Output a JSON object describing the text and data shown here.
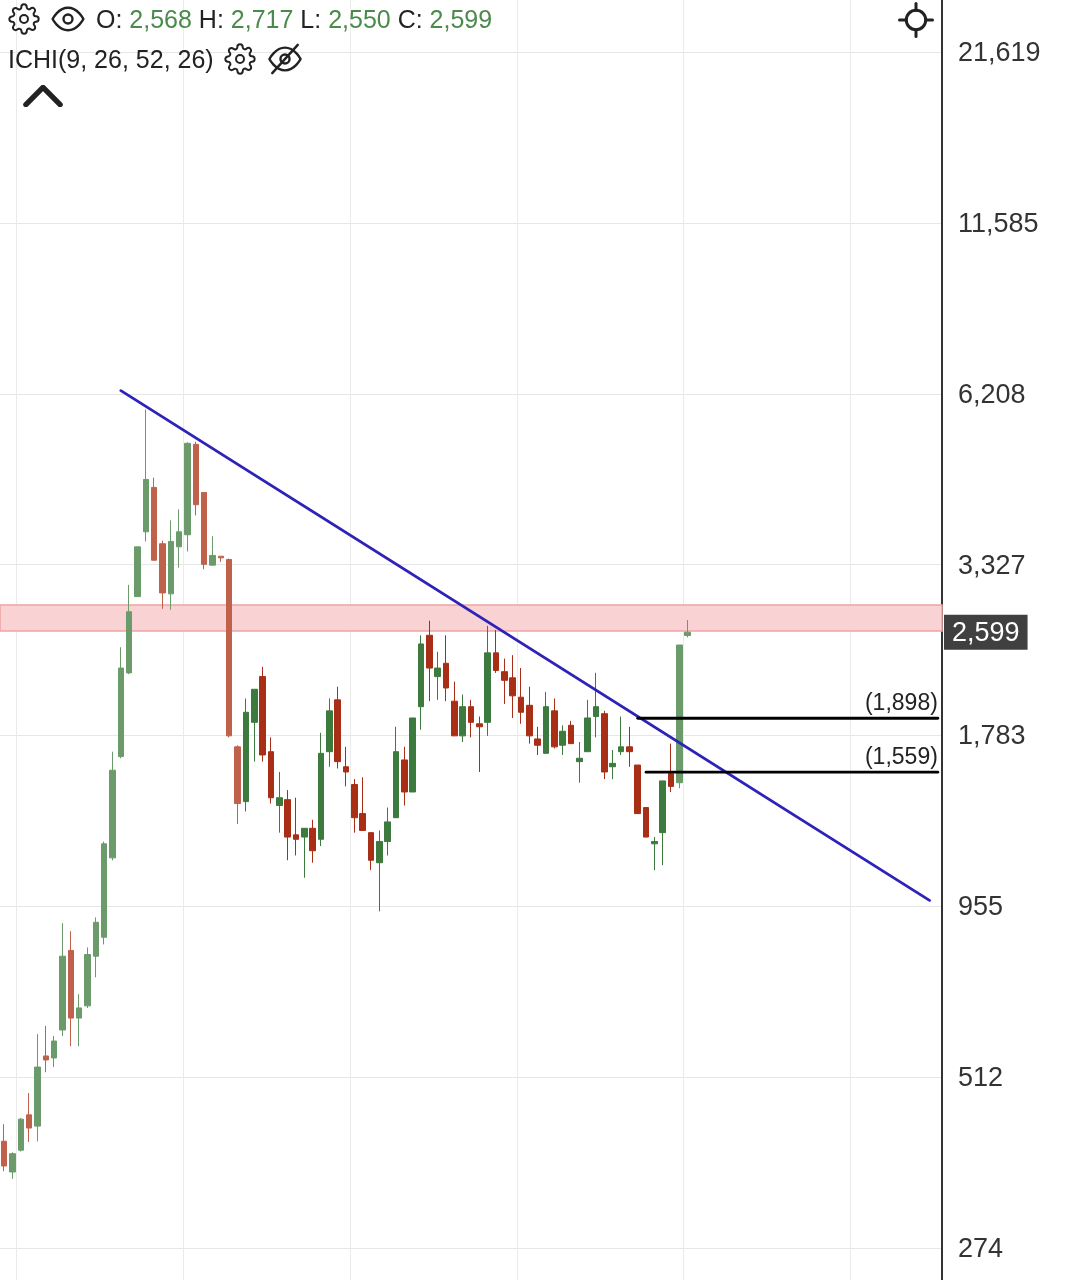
{
  "chart_data": {
    "type": "candlestick",
    "categories": [
      null,
      null,
      null,
      null,
      null,
      null,
      null,
      null,
      null,
      null,
      null,
      null,
      null,
      null,
      null,
      null,
      null,
      null,
      null,
      null,
      null,
      null,
      null,
      null,
      null,
      null,
      null,
      null,
      null,
      null,
      null,
      null,
      null,
      null,
      null,
      null,
      null,
      null,
      null,
      null,
      null,
      null,
      null,
      null,
      null,
      null,
      null,
      null,
      null,
      null,
      null,
      null,
      null,
      null,
      null,
      null,
      null,
      null,
      null,
      null,
      null,
      null,
      null,
      null,
      null,
      null,
      null,
      null,
      null,
      null,
      null,
      null,
      null,
      null,
      null,
      null,
      null,
      null,
      null,
      null,
      null,
      null,
      null,
      null,
      null,
      null,
      null,
      null,
      null,
      null,
      null,
      null,
      null,
      null,
      null,
      null,
      null,
      null,
      null,
      null,
      null,
      null,
      null,
      null,
      null,
      null,
      null,
      null,
      null,
      null,
      null,
      null,
      null
    ],
    "series": [
      {
        "ohlc": [
          [
            405,
            431,
            363,
            370
          ],
          [
            362,
            389,
            353,
            387
          ],
          [
            392,
            441,
            390,
            439
          ],
          [
            446,
            483,
            404,
            425
          ],
          [
            428,
            599,
            405,
            531
          ],
          [
            553,
            617,
            521,
            545
          ],
          [
            549,
            595,
            531,
            584
          ],
          [
            608,
            898,
            595,
            796
          ],
          [
            813,
            872,
            573,
            635
          ],
          [
            635,
            693,
            573,
            659
          ],
          [
            664,
            822,
            659,
            801
          ],
          [
            796,
            917,
            737,
            901
          ],
          [
            853,
            1210,
            831,
            1200
          ],
          [
            1140,
            1680,
            1130,
            1570
          ],
          [
            1650,
            2460,
            1640,
            2280
          ],
          [
            2240,
            3090,
            2230,
            2800
          ],
          [
            2960,
            3550,
            2960,
            3550
          ],
          [
            3750,
            5860,
            3620,
            4540
          ],
          [
            4410,
            4570,
            3380,
            3380
          ],
          [
            3590,
            3630,
            2830,
            3000
          ],
          [
            2990,
            3910,
            2820,
            3620
          ],
          [
            3550,
            4070,
            3290,
            3750
          ],
          [
            3710,
            5200,
            3490,
            5180
          ],
          [
            5160,
            5210,
            3980,
            4140
          ],
          [
            4330,
            4330,
            3270,
            3330
          ],
          [
            3320,
            3690,
            3320,
            3440
          ],
          [
            3430,
            3430,
            3360,
            3410
          ],
          [
            3390,
            3400,
            1770,
            1780
          ],
          [
            1710,
            1720,
            1290,
            1390
          ],
          [
            1400,
            2040,
            1350,
            1940
          ],
          [
            1870,
            2110,
            1620,
            2110
          ],
          [
            2210,
            2290,
            1620,
            1660
          ],
          [
            1680,
            1770,
            1390,
            1420
          ],
          [
            1380,
            1560,
            1250,
            1420
          ],
          [
            1410,
            1460,
            1130,
            1230
          ],
          [
            1240,
            1420,
            1150,
            1220
          ],
          [
            1230,
            1270,
            1060,
            1270
          ],
          [
            1270,
            1310,
            1120,
            1170
          ],
          [
            1220,
            1800,
            1190,
            1670
          ],
          [
            1680,
            2040,
            1590,
            1950
          ],
          [
            2030,
            2130,
            1580,
            1620
          ],
          [
            1590,
            1710,
            1480,
            1560
          ],
          [
            1490,
            1520,
            1250,
            1320
          ],
          [
            1340,
            1530,
            1260,
            1260
          ],
          [
            1250,
            1250,
            1090,
            1130
          ],
          [
            1120,
            1260,
            938,
            1210
          ],
          [
            1210,
            1370,
            1150,
            1300
          ],
          [
            1320,
            1840,
            1320,
            1680
          ],
          [
            1630,
            1710,
            1380,
            1450
          ],
          [
            1450,
            1900,
            1450,
            1900
          ],
          [
            1980,
            2570,
            1820,
            2490
          ],
          [
            2570,
            2710,
            2020,
            2280
          ],
          [
            2210,
            2420,
            2030,
            2280
          ],
          [
            2320,
            2570,
            2020,
            2120
          ],
          [
            2020,
            2170,
            1780,
            1780
          ],
          [
            1780,
            2070,
            1740,
            1980
          ],
          [
            1980,
            2030,
            1770,
            1870
          ],
          [
            1860,
            1910,
            1560,
            1840
          ],
          [
            1870,
            2660,
            1780,
            2410
          ],
          [
            2410,
            2620,
            2240,
            2260
          ],
          [
            2250,
            2360,
            2000,
            2180
          ],
          [
            2200,
            2390,
            1900,
            2060
          ],
          [
            2050,
            2280,
            1860,
            1940
          ],
          [
            1990,
            2130,
            1730,
            1780
          ],
          [
            1760,
            1840,
            1660,
            1720
          ],
          [
            1670,
            2090,
            1670,
            1980
          ],
          [
            1950,
            2040,
            1700,
            1710
          ],
          [
            1720,
            1850,
            1660,
            1810
          ],
          [
            1850,
            1880,
            1730,
            1730
          ],
          [
            1620,
            1740,
            1500,
            1640
          ],
          [
            1680,
            2030,
            1680,
            1900
          ],
          [
            1910,
            2240,
            1770,
            1980
          ],
          [
            1930,
            1950,
            1520,
            1560
          ],
          [
            1590,
            1690,
            1520,
            1610
          ],
          [
            1680,
            1910,
            1660,
            1710
          ],
          [
            1710,
            1840,
            1590,
            1680
          ],
          [
            1600,
            1600,
            1340,
            1340
          ],
          [
            1370,
            1370,
            1230,
            1230
          ],
          [
            1200,
            1230,
            1090,
            1210
          ],
          [
            1250,
            1510,
            1110,
            1510
          ],
          [
            1550,
            1730,
            1450,
            1480
          ],
          [
            1500,
            2480,
            1470,
            2480
          ],
          [
            2568,
            2717,
            2550,
            2599
          ],
          null,
          null,
          null,
          null,
          null,
          null,
          null,
          null,
          null,
          null,
          null,
          null,
          null,
          null,
          null,
          null,
          null,
          null,
          null,
          null,
          null,
          null,
          null,
          null,
          null,
          null,
          null,
          null,
          null,
          null
        ],
        "colors": [
          "#c0614b",
          "#6b9a6b",
          "#6b9a6b",
          "#c0614b",
          "#6b9a6b",
          "#c0614b",
          "#6b9a6b",
          "#6b9a6b",
          "#c0614b",
          "#6b9a6b",
          "#6b9a6b",
          "#6b9a6b",
          "#6b9a6b",
          "#6b9a6b",
          "#6b9a6b",
          "#6b9a6b",
          "#6b9a6b",
          "#6b9a6b",
          "#c0614b",
          "#c0614b",
          "#6b9a6b",
          "#6b9a6b",
          "#6b9a6b",
          "#c0614b",
          "#c0614b",
          "#6b9a6b",
          "#c0614b",
          "#c0614b",
          "#c0614b",
          "#3d7a3d",
          "#3d7a3d",
          "#a82e16",
          "#a82e16",
          "#3d7a3d",
          "#a82e16",
          "#a82e16",
          "#3d7a3d",
          "#a82e16",
          "#3d7a3d",
          "#3d7a3d",
          "#a82e16",
          "#a82e16",
          "#a82e16",
          "#a82e16",
          "#a82e16",
          "#3d7a3d",
          "#3d7a3d",
          "#3d7a3d",
          "#a82e16",
          "#3d7a3d",
          "#3d7a3d",
          "#a82e16",
          "#3d7a3d",
          "#a82e16",
          "#a82e16",
          "#3d7a3d",
          "#a82e16",
          "#a82e16",
          "#3d7a3d",
          "#a82e16",
          "#a82e16",
          "#a82e16",
          "#a82e16",
          "#a82e16",
          "#a82e16",
          "#3d7a3d",
          "#a82e16",
          "#3d7a3d",
          "#a82e16",
          "#3d7a3d",
          "#3d7a3d",
          "#3d7a3d",
          "#a82e16",
          "#3d7a3d",
          "#3d7a3d",
          "#a82e16",
          "#a82e16",
          "#a82e16",
          "#3d7a3d",
          "#3d7a3d",
          "#a82e16",
          "#6b9a6b",
          "#6b9a6b",
          null,
          null,
          null,
          null,
          null,
          null,
          null,
          null,
          null,
          null,
          null,
          null,
          null,
          null,
          null,
          null,
          null,
          null,
          null,
          null,
          null,
          null,
          null,
          null,
          null,
          null,
          null,
          null,
          null,
          null
        ]
      },
      {
        "type": "line",
        "color": "#2e22b8",
        "values": [
          null,
          null,
          null,
          null,
          null,
          null,
          null,
          null,
          null,
          null,
          null,
          null,
          null,
          null,
          6280,
          null,
          null,
          null,
          null,
          null,
          null,
          null,
          null,
          null,
          null,
          null,
          null,
          null,
          null,
          null,
          null,
          null,
          null,
          null,
          null,
          null,
          null,
          null,
          null,
          null,
          null,
          null,
          null,
          null,
          null,
          null,
          null,
          null,
          null,
          null,
          null,
          null,
          null,
          null,
          null,
          null,
          null,
          null,
          null,
          null,
          null,
          null,
          null,
          null,
          null,
          null,
          null,
          null,
          null,
          null,
          null,
          null,
          null,
          null,
          null,
          null,
          null,
          null,
          null,
          null,
          null,
          null,
          null,
          null,
          null,
          null,
          null,
          null,
          null,
          null,
          null,
          null,
          null,
          null,
          null,
          null,
          null,
          null,
          null,
          null,
          null,
          null,
          null,
          null,
          null,
          null,
          null,
          null,
          null,
          null,
          null,
          976,
          null
        ]
      },
      {
        "type": "line",
        "color": "#000000",
        "values": [
          null,
          null,
          null,
          null,
          null,
          null,
          null,
          null,
          null,
          null,
          null,
          null,
          null,
          null,
          null,
          null,
          null,
          null,
          null,
          null,
          null,
          null,
          null,
          null,
          null,
          null,
          null,
          null,
          null,
          null,
          null,
          null,
          null,
          null,
          null,
          null,
          null,
          null,
          null,
          null,
          null,
          null,
          null,
          null,
          null,
          null,
          null,
          null,
          null,
          null,
          null,
          null,
          null,
          null,
          null,
          null,
          null,
          null,
          null,
          null,
          null,
          null,
          null,
          null,
          null,
          null,
          null,
          null,
          null,
          null,
          null,
          null,
          null,
          null,
          null,
          null,
          1898,
          null,
          null,
          null,
          null,
          null,
          null,
          null,
          null,
          null,
          null,
          null,
          null,
          null,
          null,
          null,
          null,
          null,
          null,
          null,
          null,
          null,
          null,
          null,
          null,
          null,
          null,
          null,
          null,
          null,
          null,
          null,
          null,
          null,
          null,
          null,
          1898
        ],
        "value_labels": [
          null,
          null,
          null,
          null,
          null,
          null,
          null,
          null,
          null,
          null,
          null,
          null,
          null,
          null,
          null,
          null,
          null,
          null,
          null,
          null,
          null,
          null,
          null,
          null,
          null,
          null,
          null,
          null,
          null,
          null,
          null,
          null,
          null,
          null,
          null,
          null,
          null,
          null,
          null,
          null,
          null,
          null,
          null,
          null,
          null,
          null,
          null,
          null,
          null,
          null,
          null,
          null,
          null,
          null,
          null,
          null,
          null,
          null,
          null,
          null,
          null,
          null,
          null,
          null,
          null,
          null,
          null,
          null,
          null,
          null,
          null,
          null,
          null,
          null,
          null,
          null,
          null,
          null,
          null,
          null,
          null,
          null,
          null,
          null,
          null,
          null,
          null,
          null,
          null,
          null,
          null,
          null,
          null,
          null,
          null,
          null,
          null,
          null,
          null,
          null,
          null,
          null,
          null,
          null,
          null,
          null,
          null,
          null,
          null,
          null,
          null,
          null,
          "(1,898)"
        ]
      },
      {
        "type": "line",
        "color": "#000000",
        "values": [
          null,
          null,
          null,
          null,
          null,
          null,
          null,
          null,
          null,
          null,
          null,
          null,
          null,
          null,
          null,
          null,
          null,
          null,
          null,
          null,
          null,
          null,
          null,
          null,
          null,
          null,
          null,
          null,
          null,
          null,
          null,
          null,
          null,
          null,
          null,
          null,
          null,
          null,
          null,
          null,
          null,
          null,
          null,
          null,
          null,
          null,
          null,
          null,
          null,
          null,
          null,
          null,
          null,
          null,
          null,
          null,
          null,
          null,
          null,
          null,
          null,
          null,
          null,
          null,
          null,
          null,
          null,
          null,
          null,
          null,
          null,
          null,
          null,
          null,
          null,
          null,
          null,
          1559,
          null,
          null,
          null,
          null,
          null,
          null,
          null,
          null,
          null,
          null,
          null,
          null,
          null,
          null,
          null,
          null,
          null,
          null,
          null,
          null,
          null,
          null,
          null,
          null,
          null,
          null,
          null,
          null,
          null,
          null,
          null,
          null,
          null,
          null,
          1559
        ],
        "value_labels": [
          null,
          null,
          null,
          null,
          null,
          null,
          null,
          null,
          null,
          null,
          null,
          null,
          null,
          null,
          null,
          null,
          null,
          null,
          null,
          null,
          null,
          null,
          null,
          null,
          null,
          null,
          null,
          null,
          null,
          null,
          null,
          null,
          null,
          null,
          null,
          null,
          null,
          null,
          null,
          null,
          null,
          null,
          null,
          null,
          null,
          null,
          null,
          null,
          null,
          null,
          null,
          null,
          null,
          null,
          null,
          null,
          null,
          null,
          null,
          null,
          null,
          null,
          null,
          null,
          null,
          null,
          null,
          null,
          null,
          null,
          null,
          null,
          null,
          null,
          null,
          null,
          null,
          null,
          null,
          null,
          null,
          null,
          null,
          null,
          null,
          null,
          null,
          null,
          null,
          null,
          null,
          null,
          null,
          null,
          null,
          null,
          null,
          null,
          null,
          null,
          null,
          null,
          null,
          null,
          null,
          null,
          null,
          null,
          null,
          null,
          null,
          null,
          "(1,559)"
        ]
      }
    ],
    "bands": [
      {
        "axis": "y",
        "from": 2610,
        "to": 2870,
        "color": "#f9d3d3"
      }
    ],
    "ylim": [
      244,
      26150
    ],
    "yticks": [
      274,
      512,
      955,
      {
        "value": 1783,
        "label": "1,783"
      },
      {
        "value": 3327,
        "label": "3,327"
      },
      {
        "value": 6208,
        "label": "6,208"
      },
      {
        "value": 11585,
        "label": "11,585"
      },
      {
        "value": 21619,
        "label": "21,619"
      }
    ],
    "log": "y",
    "grid": true,
    "tick_labels": "y",
    "annotations": [
      "O: 2,568 H: 2,717 L: 2,550 C: 2,599",
      "ICHI(9, 26, 52, 26)",
      "2,599"
    ]
  }
}
